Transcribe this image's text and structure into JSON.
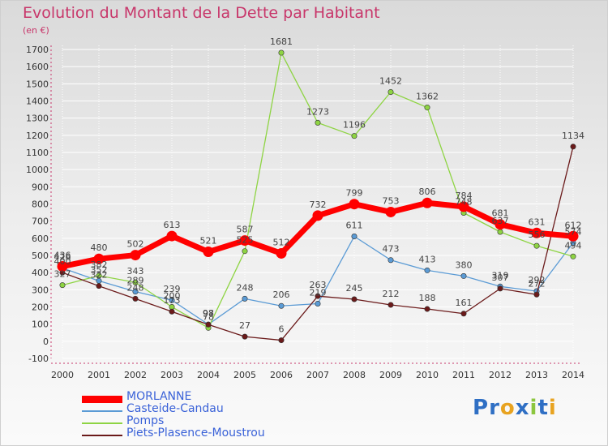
{
  "title": "Evolution du Montant de la Dette par Habitant",
  "unit_label": "(en €)",
  "logo": {
    "text": "Proxiti",
    "letters": [
      {
        "c": "P",
        "color": "#2f6fc4"
      },
      {
        "c": "r",
        "color": "#2f6fc4"
      },
      {
        "c": "o",
        "color": "#e8a320"
      },
      {
        "c": "x",
        "color": "#2f6fc4"
      },
      {
        "c": "i",
        "color": "#8cc63f"
      },
      {
        "c": "t",
        "color": "#2f6fc4"
      },
      {
        "c": "i",
        "color": "#e8a320"
      }
    ]
  },
  "chart_data": {
    "type": "line",
    "x": [
      "2000",
      "2001",
      "2002",
      "2003",
      "2004",
      "2005",
      "2006",
      "2007",
      "2008",
      "2009",
      "2010",
      "2011",
      "2012",
      "2013",
      "2014"
    ],
    "ylim": [
      -100,
      1700
    ],
    "yticks": [
      -100,
      0,
      100,
      200,
      300,
      400,
      500,
      600,
      700,
      800,
      900,
      1000,
      1100,
      1200,
      1300,
      1400,
      1500,
      1600,
      1700
    ],
    "grid": true,
    "legend_position": "bottom-left",
    "series": [
      {
        "name": "MORLANNE",
        "color": "#ff0000",
        "values": [
          436,
          480,
          502,
          613,
          521,
          587,
          512,
          732,
          799,
          753,
          806,
          784,
          681,
          631,
          612
        ]
      },
      {
        "name": "Casteide-Candau",
        "color": "#5b9bd5",
        "values": [
          426,
          352,
          289,
          239,
          98,
          248,
          206,
          219,
          611,
          473,
          413,
          380,
          319,
          292,
          574
        ]
      },
      {
        "name": "Pomps",
        "color": "#8ed443",
        "values": [
          327,
          382,
          343,
          200,
          78,
          525,
          1681,
          1273,
          1196,
          1452,
          1362,
          748,
          637,
          556,
          494
        ]
      },
      {
        "name": "Piets-Plasence-Moustrou",
        "color": "#6b1a1a",
        "values": [
          400,
          322,
          248,
          173,
          97,
          27,
          6,
          263,
          245,
          212,
          188,
          161,
          307,
          272,
          1134
        ]
      }
    ]
  }
}
